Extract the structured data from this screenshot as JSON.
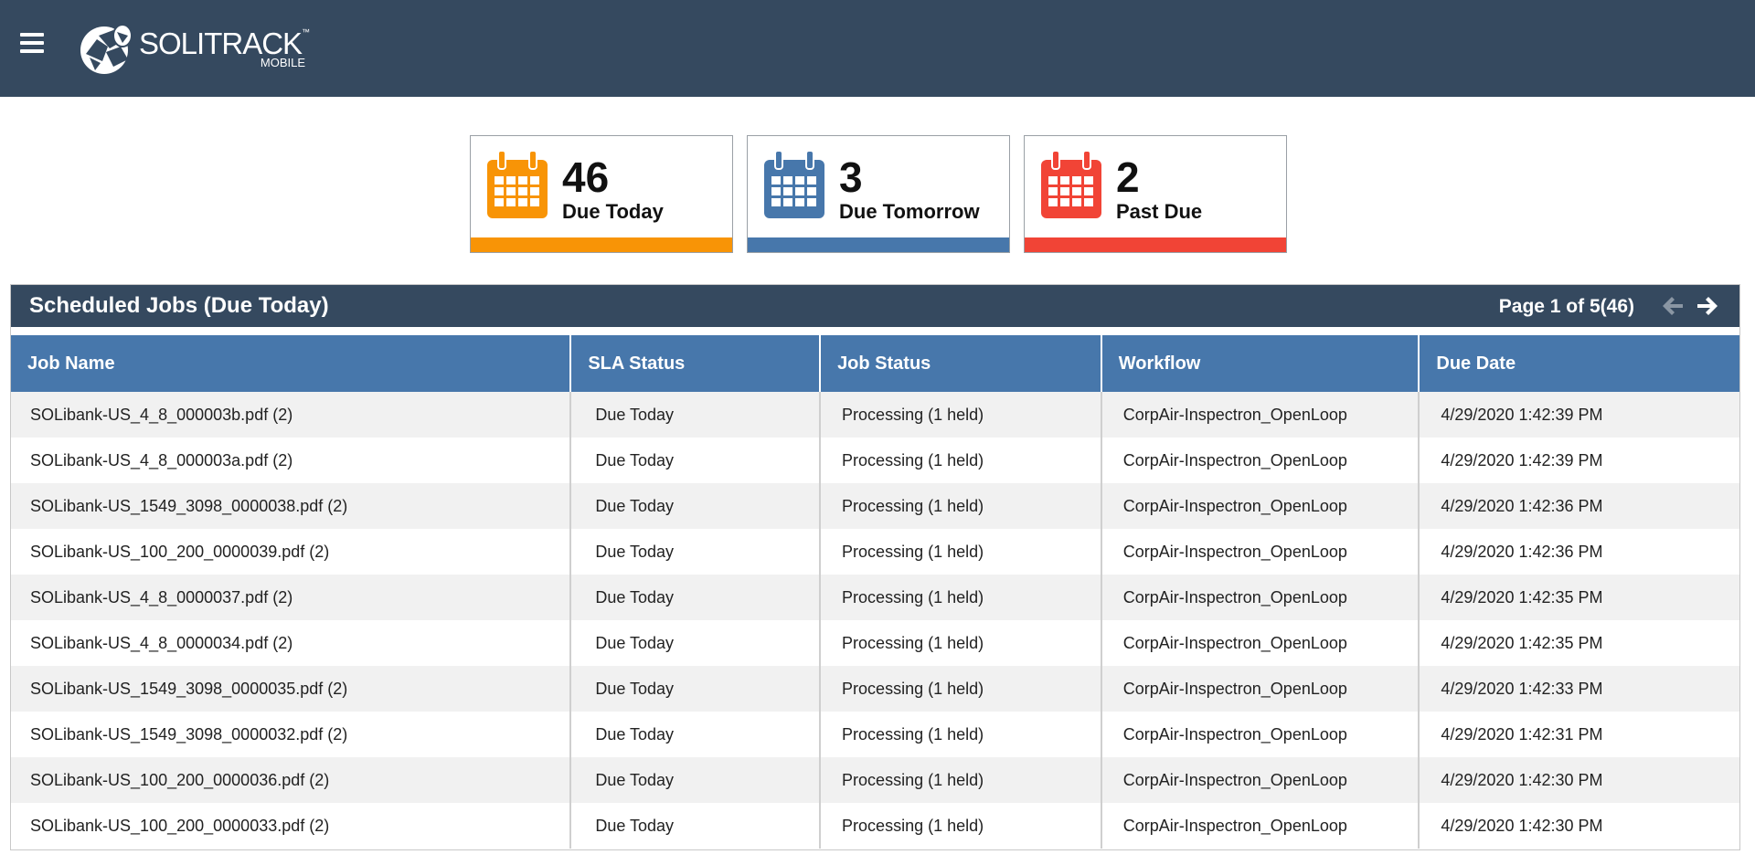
{
  "header": {
    "brand": "SOLITRACK",
    "brand_tm": "™",
    "brand_sub": "MOBILE"
  },
  "cards": [
    {
      "count": "46",
      "label": "Due Today",
      "color": "#f89406"
    },
    {
      "count": "3",
      "label": "Due Tomorrow",
      "color": "#4777ab"
    },
    {
      "count": "2",
      "label": "Past Due",
      "color": "#f14436"
    }
  ],
  "panel": {
    "title": "Scheduled Jobs (Due Today)",
    "page_info": "Page 1 of 5(46)"
  },
  "table": {
    "columns": [
      "Job Name",
      "SLA Status",
      "Job Status",
      "Workflow",
      "Due Date"
    ],
    "rows": [
      [
        "SOLibank-US_4_8_000003b.pdf (2)",
        "Due Today",
        "Processing (1 held)",
        "CorpAir-Inspectron_OpenLoop",
        "4/29/2020 1:42:39 PM"
      ],
      [
        "SOLibank-US_4_8_000003a.pdf (2)",
        "Due Today",
        "Processing (1 held)",
        "CorpAir-Inspectron_OpenLoop",
        "4/29/2020 1:42:39 PM"
      ],
      [
        "SOLibank-US_1549_3098_0000038.pdf (2)",
        "Due Today",
        "Processing (1 held)",
        "CorpAir-Inspectron_OpenLoop",
        "4/29/2020 1:42:36 PM"
      ],
      [
        "SOLibank-US_100_200_0000039.pdf (2)",
        "Due Today",
        "Processing (1 held)",
        "CorpAir-Inspectron_OpenLoop",
        "4/29/2020 1:42:36 PM"
      ],
      [
        "SOLibank-US_4_8_0000037.pdf (2)",
        "Due Today",
        "Processing (1 held)",
        "CorpAir-Inspectron_OpenLoop",
        "4/29/2020 1:42:35 PM"
      ],
      [
        "SOLibank-US_4_8_0000034.pdf (2)",
        "Due Today",
        "Processing (1 held)",
        "CorpAir-Inspectron_OpenLoop",
        "4/29/2020 1:42:35 PM"
      ],
      [
        "SOLibank-US_1549_3098_0000035.pdf (2)",
        "Due Today",
        "Processing (1 held)",
        "CorpAir-Inspectron_OpenLoop",
        "4/29/2020 1:42:33 PM"
      ],
      [
        "SOLibank-US_1549_3098_0000032.pdf (2)",
        "Due Today",
        "Processing (1 held)",
        "CorpAir-Inspectron_OpenLoop",
        "4/29/2020 1:42:31 PM"
      ],
      [
        "SOLibank-US_100_200_0000036.pdf (2)",
        "Due Today",
        "Processing (1 held)",
        "CorpAir-Inspectron_OpenLoop",
        "4/29/2020 1:42:30 PM"
      ],
      [
        "SOLibank-US_100_200_0000033.pdf (2)",
        "Due Today",
        "Processing (1 held)",
        "CorpAir-Inspectron_OpenLoop",
        "4/29/2020 1:42:30 PM"
      ]
    ]
  },
  "icons": {
    "menu": "hamburger-menu-icon",
    "logo": "solitrack-logo-icon",
    "calendar": "calendar-icon",
    "prev": "arrow-left-icon",
    "next": "arrow-right-icon"
  },
  "colors": {
    "topbar": "#35495f",
    "table_header": "#4777ab",
    "arrow_disabled": "#8a96a3"
  }
}
